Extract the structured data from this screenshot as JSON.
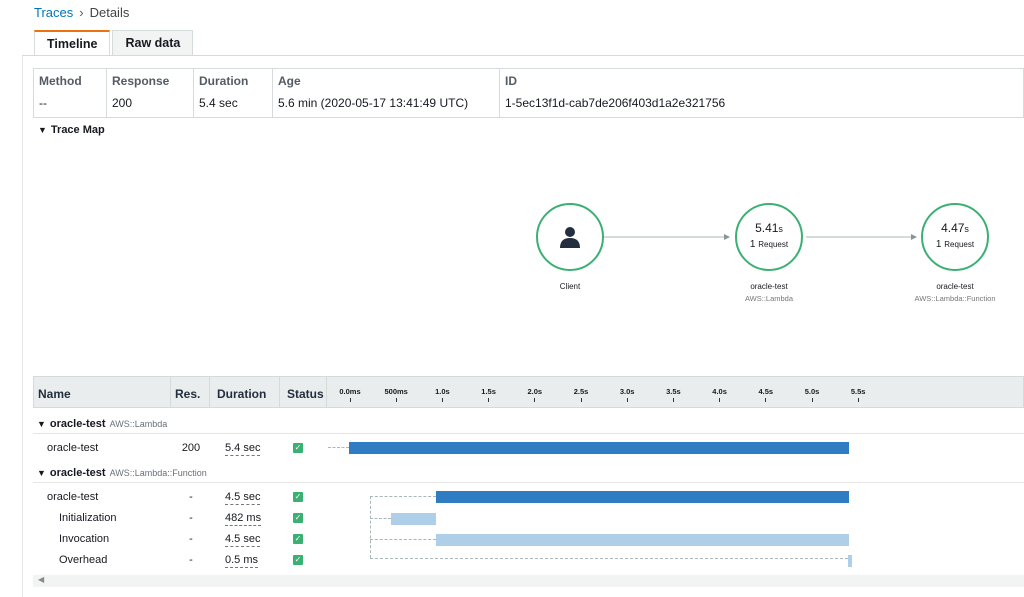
{
  "breadcrumb": {
    "root": "Traces",
    "current": "Details"
  },
  "tabs": [
    {
      "label": "Timeline",
      "active": true
    },
    {
      "label": "Raw data",
      "active": false
    }
  ],
  "summary": {
    "method_label": "Method",
    "method": "--",
    "response_label": "Response",
    "response": "200",
    "duration_label": "Duration",
    "duration": "5.4 sec",
    "age_label": "Age",
    "age": "5.6 min (2020-05-17 13:41:49 UTC)",
    "id_label": "ID",
    "id": "1-5ec13f1d-cab7de206f403d1a2e321756"
  },
  "trace_map": {
    "title": "Trace Map",
    "client": {
      "label": "Client"
    },
    "node1": {
      "value": "5.41",
      "unit": "s",
      "count": "1",
      "count_label": "Request",
      "name": "oracle-test",
      "type": "AWS::Lambda"
    },
    "node2": {
      "value": "4.47",
      "unit": "s",
      "count": "1",
      "count_label": "Request",
      "name": "oracle-test",
      "type": "AWS::Lambda::Function"
    }
  },
  "timeline": {
    "headers": {
      "name": "Name",
      "res": "Res.",
      "duration": "Duration",
      "status": "Status"
    },
    "ticks": [
      "0.0ms",
      "500ms",
      "1.0s",
      "1.5s",
      "2.0s",
      "2.5s",
      "3.0s",
      "3.5s",
      "4.0s",
      "4.5s",
      "5.0s",
      "5.5s"
    ],
    "groups": [
      {
        "name": "oracle-test",
        "type": "AWS::Lambda"
      },
      {
        "name": "oracle-test",
        "type": "AWS::Lambda::Function"
      }
    ],
    "rows": [
      {
        "name": "oracle-test",
        "res": "200",
        "duration": "5.4 sec"
      },
      {
        "name": "oracle-test",
        "res": "-",
        "duration": "4.5 sec"
      },
      {
        "name": "Initialization",
        "res": "-",
        "duration": "482 ms"
      },
      {
        "name": "Invocation",
        "res": "-",
        "duration": "4.5 sec"
      },
      {
        "name": "Overhead",
        "res": "-",
        "duration": "0.5 ms"
      }
    ]
  },
  "colors": {
    "accent": "#ec7211",
    "link": "#0073bb",
    "ok": "#3bb073",
    "bar_dark": "#2e7cc1",
    "bar_light": "#afcfe8"
  }
}
